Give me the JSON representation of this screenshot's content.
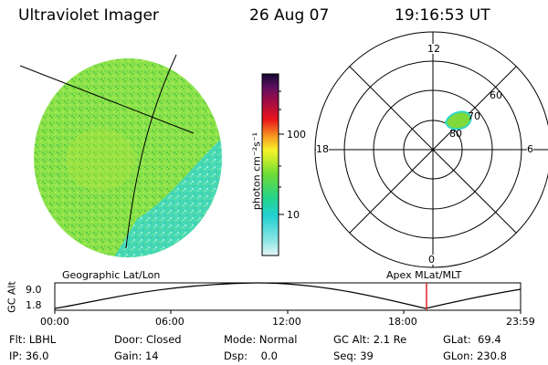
{
  "header": {
    "instrument": "Ultraviolet Imager",
    "date": "26 Aug 07",
    "time": "19:16:53 UT"
  },
  "colorbar": {
    "unit_label": "photon cm⁻²s⁻¹",
    "ticks": [
      "100",
      "10"
    ]
  },
  "polar": {
    "mlt_labels": [
      "12",
      "18",
      "6",
      "0"
    ],
    "lat_labels": [
      "60",
      "70",
      "80"
    ]
  },
  "strip": {
    "left_caption": "Geographic Lat/Lon",
    "right_caption": "Apex MLat/MLT",
    "ylabel": "GC Alt",
    "y_ticks": [
      "9.0",
      "1.8"
    ],
    "x_ticks": [
      "00:00",
      "06:00",
      "12:00",
      "18:00",
      "23:59"
    ],
    "marker_time": "19:17",
    "marker_color": "#dd2222"
  },
  "footer": {
    "flt": "Flt: LBHL",
    "door": "Door: Closed",
    "mode": "Mode: Normal",
    "gc_alt": "GC Alt: 2.1 Re",
    "glat": "GLat:  69.4",
    "ip": "IP: 36.0",
    "gain": "Gain: 14",
    "dsp": "Dsp:    0.0",
    "seq": "Seq: 39",
    "glon": "GLon: 230.8"
  },
  "colors": {
    "aurora_green": "#7fd93a",
    "aurora_cyan": "#2fd6c6",
    "marker_red": "#dd2222"
  }
}
